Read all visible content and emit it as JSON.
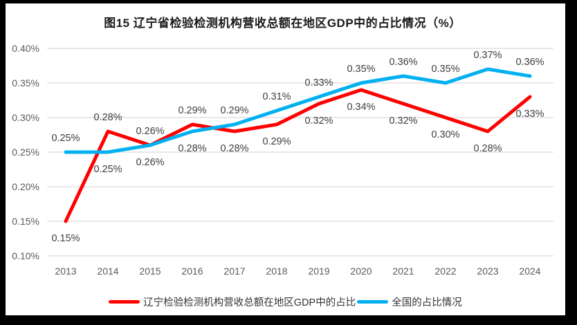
{
  "title": "图15 辽宁省检验检测机构营收总额在地区GDP中的占比情况（%）",
  "colors": {
    "liaoning_line": "#FF0000",
    "national_line": "#00B0F0",
    "gridline": "#D9D9D9",
    "axis_text": "#595959",
    "data_label_text": "#3d3d3d",
    "title_text": "#1a1a1a",
    "frame": "#000000",
    "background": "#FFFFFF"
  },
  "legend": [
    {
      "label": "辽宁检验检测机构营收总额在地区GDP中的占比",
      "color_key": "liaoning_line"
    },
    {
      "label": "全国的占比情况",
      "color_key": "national_line"
    }
  ],
  "chart_data": {
    "type": "line",
    "title": "图15 辽宁省检验检测机构营收总额在地区GDP中的占比情况（%）",
    "x": [
      "2013",
      "2014",
      "2015",
      "2016",
      "2017",
      "2018",
      "2019",
      "2020",
      "2021",
      "2022",
      "2023",
      "2024"
    ],
    "series": [
      {
        "name": "辽宁检验检测机构营收总额在地区GDP中的占比",
        "color": "#FF0000",
        "values": [
          0.15,
          0.28,
          0.26,
          0.29,
          0.28,
          0.29,
          0.32,
          0.34,
          0.32,
          0.3,
          0.28,
          0.33
        ],
        "labels": [
          "0.15%",
          "0.28%",
          "0.26%",
          "0.29%",
          "0.28%",
          "0.29%",
          "0.32%",
          "0.34%",
          "0.32%",
          "0.30%",
          "0.28%",
          "0.33%"
        ],
        "label_side": [
          "below",
          "above",
          "above",
          "above",
          "below",
          "below",
          "below",
          "below",
          "below",
          "below",
          "below",
          "below"
        ]
      },
      {
        "name": "全国的占比情况",
        "color": "#00B0F0",
        "values": [
          0.25,
          0.25,
          0.26,
          0.28,
          0.29,
          0.31,
          0.33,
          0.35,
          0.36,
          0.35,
          0.37,
          0.36
        ],
        "labels": [
          "0.25%",
          "0.25%",
          "0.26%",
          "0.28%",
          "0.29%",
          "0.31%",
          "0.33%",
          "0.35%",
          "0.36%",
          "0.35%",
          "0.37%",
          "0.36%"
        ],
        "label_side": [
          "above",
          "below",
          "below",
          "below",
          "above",
          "above",
          "above",
          "above",
          "above",
          "above",
          "above",
          "above"
        ]
      }
    ],
    "xlabel": "",
    "ylabel": "",
    "ylim": [
      0.1,
      0.4
    ],
    "ytick_step": 0.05,
    "ytick_labels": [
      "0.10%",
      "0.15%",
      "0.20%",
      "0.25%",
      "0.30%",
      "0.35%",
      "0.40%"
    ],
    "grid": true,
    "legend_position": "bottom"
  }
}
